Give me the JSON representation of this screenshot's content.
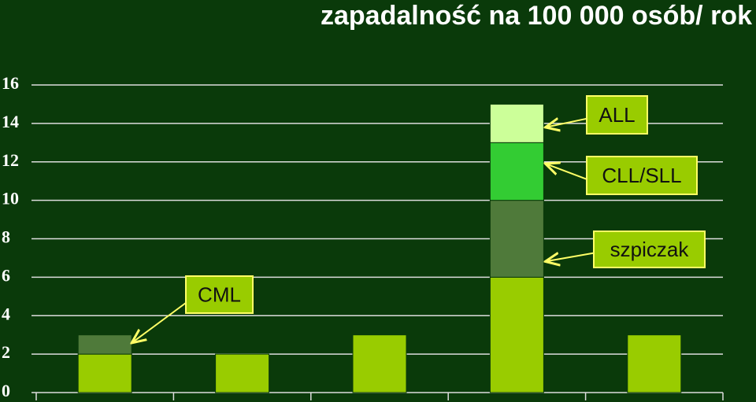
{
  "chart_data": {
    "type": "stacked_bar",
    "title": "zapadalność na 100 000 osób/ rok",
    "categories": [
      null,
      null,
      null,
      null,
      null
    ],
    "series": [
      {
        "color": "#99cc00",
        "values": [
          2,
          2,
          3,
          6,
          3
        ]
      },
      {
        "name": "CML",
        "color": "#4f7a3a",
        "values": [
          1,
          null,
          null,
          null,
          null
        ]
      },
      {
        "name": "szpiczak",
        "color": "#4f7a3a",
        "values": [
          null,
          null,
          null,
          4,
          null
        ]
      },
      {
        "name": "CLL/SLL",
        "color": "#33cc33",
        "values": [
          null,
          null,
          null,
          3,
          null
        ]
      },
      {
        "name": "ALL",
        "color": "#ccff99",
        "values": [
          null,
          null,
          null,
          2,
          null
        ]
      }
    ],
    "ylim": [
      0,
      16
    ],
    "yticks": [
      0,
      2,
      4,
      6,
      8,
      10,
      12,
      14,
      16
    ],
    "grid": true
  }
}
